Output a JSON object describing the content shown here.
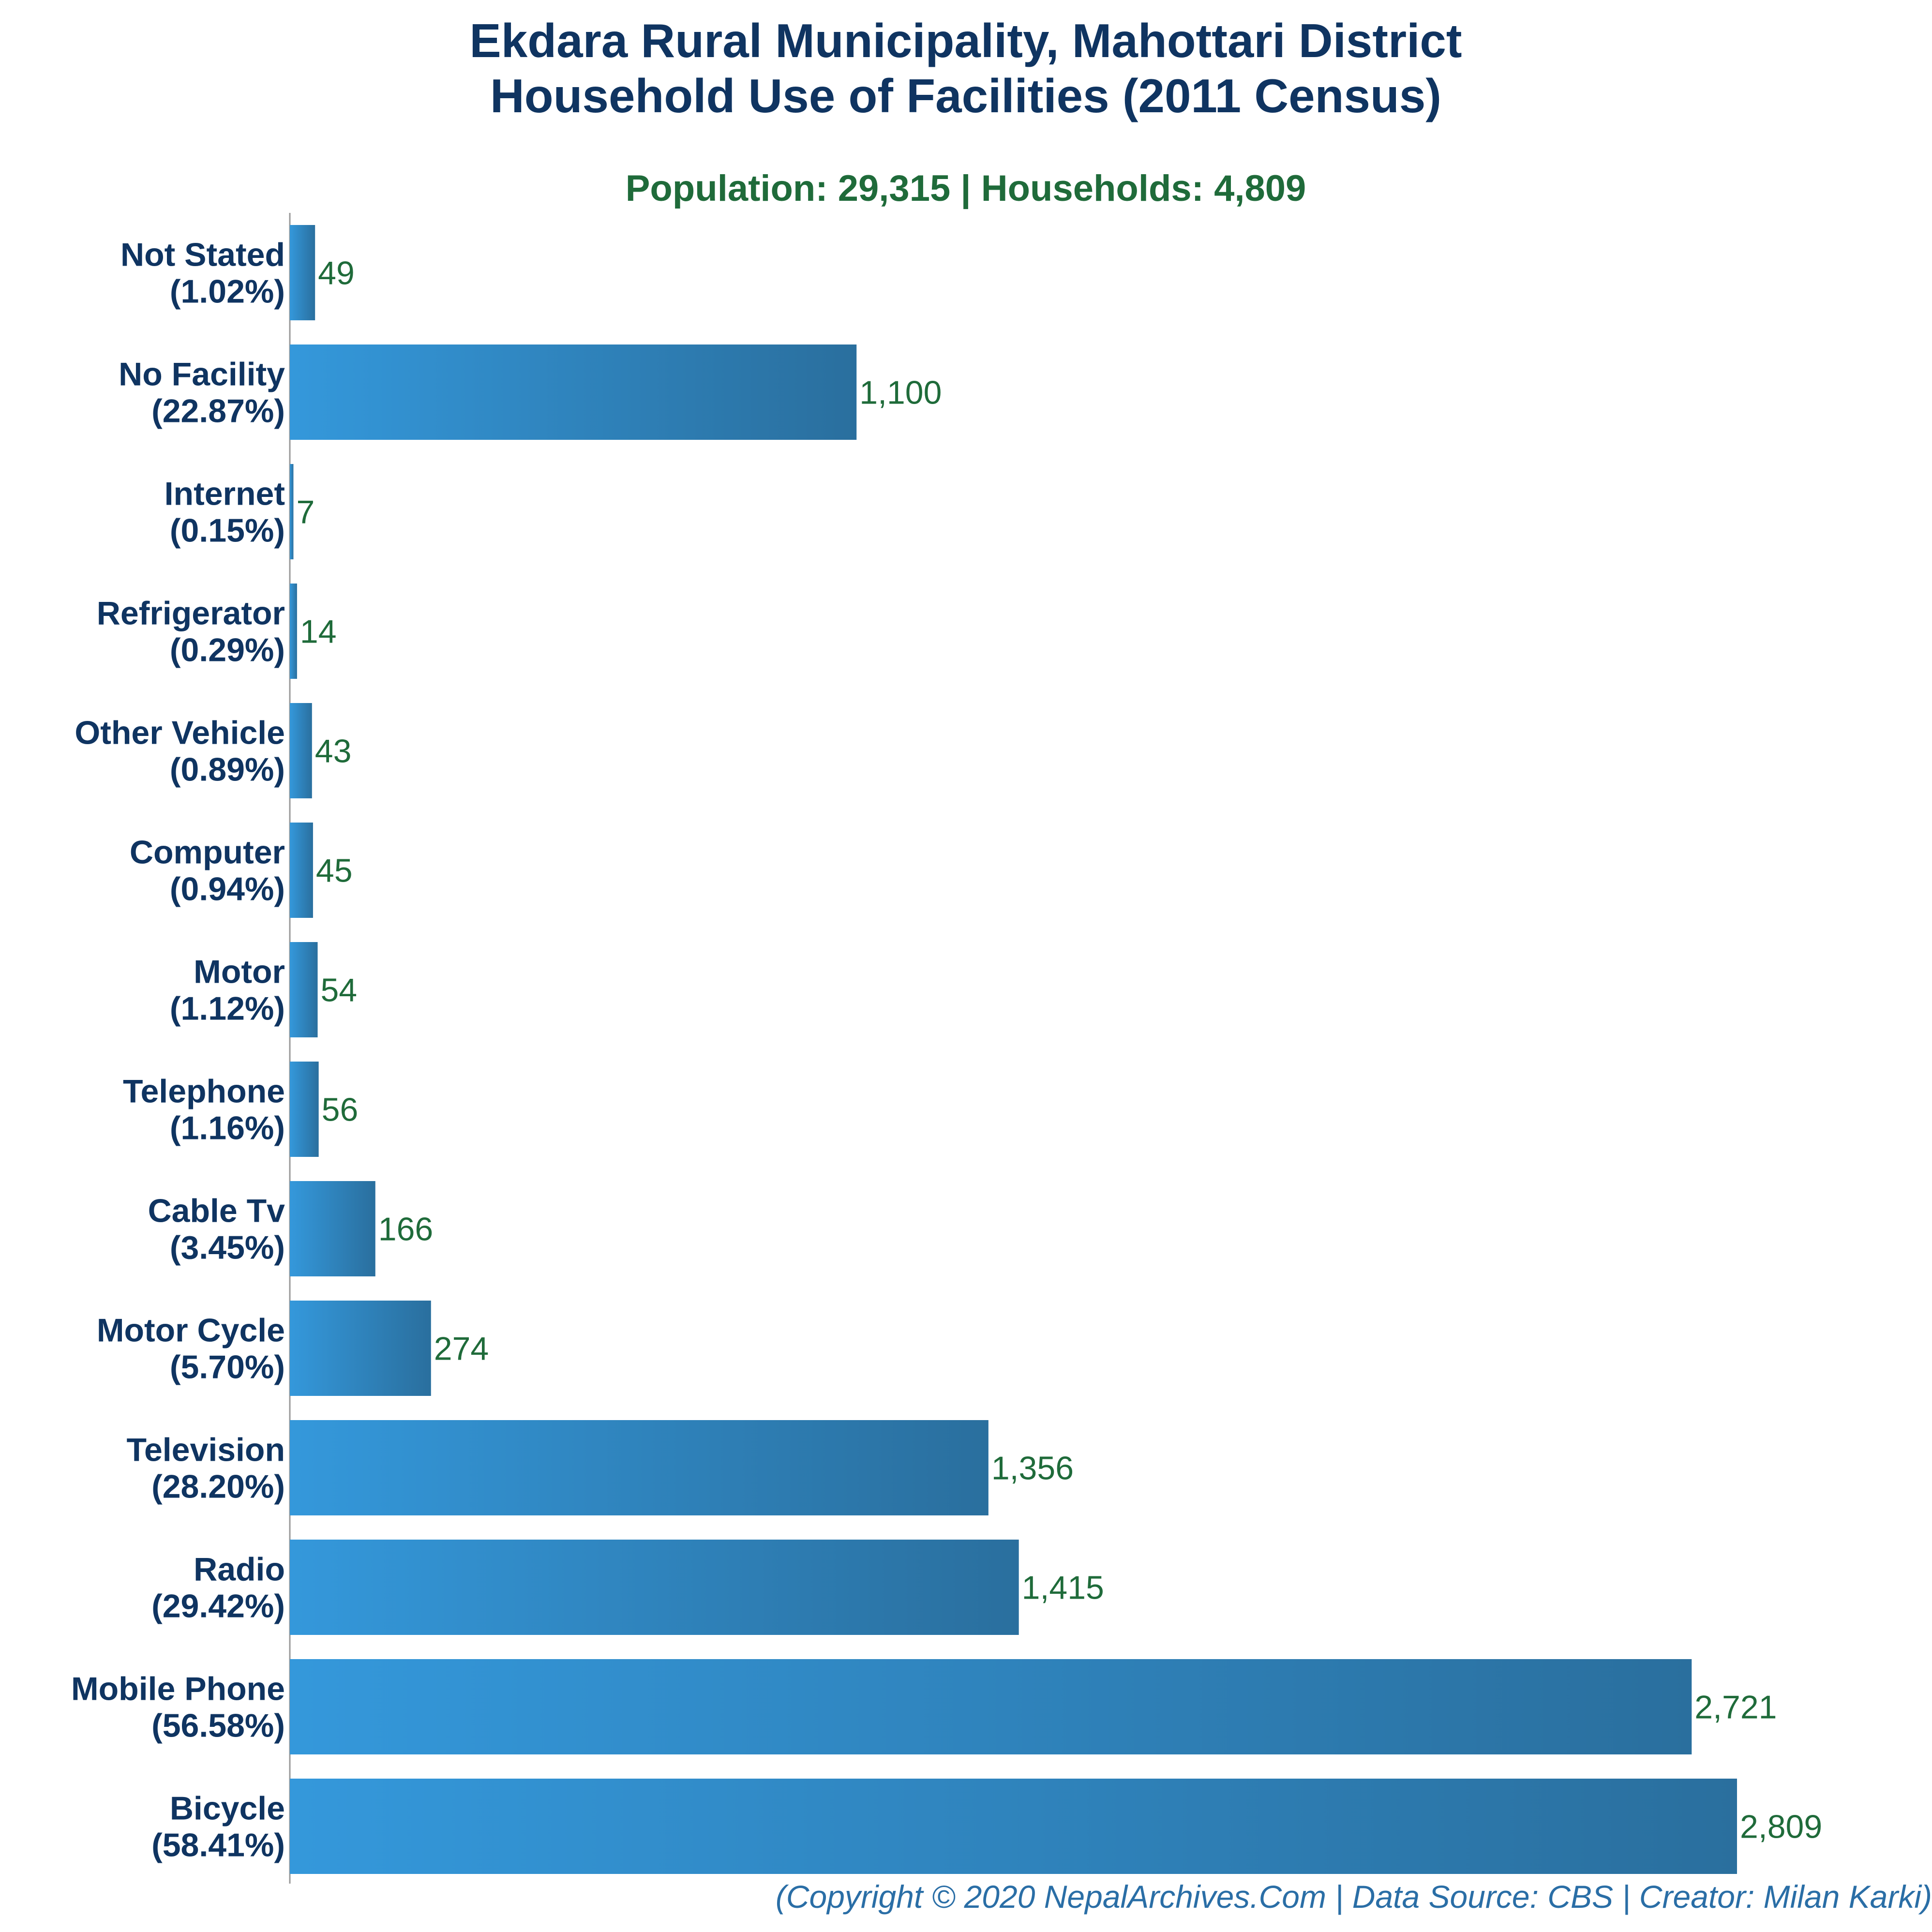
{
  "chart_data": {
    "type": "bar",
    "orientation": "horizontal",
    "title": [
      "Ekdara Rural Municipality, Mahottari District",
      "Household Use of Facilities (2011 Census)"
    ],
    "subtitle": "Population: 29,315 | Households: 4,809",
    "categories": [
      {
        "name": "Not Stated",
        "pct": "(1.02%)"
      },
      {
        "name": "No Facility",
        "pct": "(22.87%)"
      },
      {
        "name": "Internet",
        "pct": "(0.15%)"
      },
      {
        "name": "Refrigerator",
        "pct": "(0.29%)"
      },
      {
        "name": "Other Vehicle",
        "pct": "(0.89%)"
      },
      {
        "name": "Computer",
        "pct": "(0.94%)"
      },
      {
        "name": "Motor",
        "pct": "(1.12%)"
      },
      {
        "name": "Telephone",
        "pct": "(1.16%)"
      },
      {
        "name": "Cable Tv",
        "pct": "(3.45%)"
      },
      {
        "name": "Motor Cycle",
        "pct": "(5.70%)"
      },
      {
        "name": "Television",
        "pct": "(28.20%)"
      },
      {
        "name": "Radio",
        "pct": "(29.42%)"
      },
      {
        "name": "Mobile Phone",
        "pct": "(56.58%)"
      },
      {
        "name": "Bicycle",
        "pct": "(58.41%)"
      }
    ],
    "values": [
      49,
      1100,
      7,
      14,
      43,
      45,
      54,
      56,
      166,
      274,
      1356,
      1415,
      2721,
      2809
    ],
    "value_labels": [
      "49",
      "1,100",
      "7",
      "14",
      "43",
      "45",
      "54",
      "56",
      "166",
      "274",
      "1,356",
      "1,415",
      "2,721",
      "2,809"
    ],
    "xlim": [
      0,
      2809
    ],
    "grid": false,
    "colors": {
      "bar_light": "#3498db",
      "bar_dark": "#2a6f9e",
      "title": "#0f3461",
      "subtitle": "#1f6b3a",
      "value": "#1f6b3a",
      "footer": "#2a6ea6",
      "axis": "#999999"
    }
  },
  "footer": "(Copyright © 2020 NepalArchives.Com | Data Source: CBS | Creator: Milan Karki)"
}
